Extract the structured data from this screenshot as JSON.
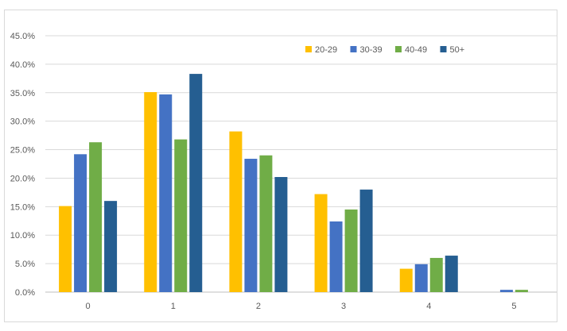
{
  "chart_data": {
    "type": "bar",
    "title": "",
    "xlabel": "",
    "ylabel": "",
    "categories": [
      "0",
      "1",
      "2",
      "3",
      "4",
      "5"
    ],
    "ylim": [
      0,
      45
    ],
    "y_ticks": [
      "0.0%",
      "5.0%",
      "10.0%",
      "15.0%",
      "20.0%",
      "25.0%",
      "30.0%",
      "35.0%",
      "40.0%",
      "45.0%"
    ],
    "y_tick_values": [
      0,
      5,
      10,
      15,
      20,
      25,
      30,
      35,
      40,
      45
    ],
    "grid": true,
    "legend_position": "top-right",
    "series": [
      {
        "name": "20-29",
        "color": "#FFC000",
        "values": [
          15.1,
          35.1,
          28.2,
          17.2,
          4.1,
          0.0
        ]
      },
      {
        "name": "30-39",
        "color": "#4472C4",
        "values": [
          24.2,
          34.7,
          23.4,
          12.4,
          4.9,
          0.4
        ]
      },
      {
        "name": "40-49",
        "color": "#70AD47",
        "values": [
          26.3,
          26.8,
          24.0,
          14.5,
          6.0,
          0.4
        ]
      },
      {
        "name": "50+",
        "color": "#255E91",
        "values": [
          16.0,
          38.3,
          20.2,
          18.0,
          6.4,
          0.0
        ]
      }
    ]
  }
}
